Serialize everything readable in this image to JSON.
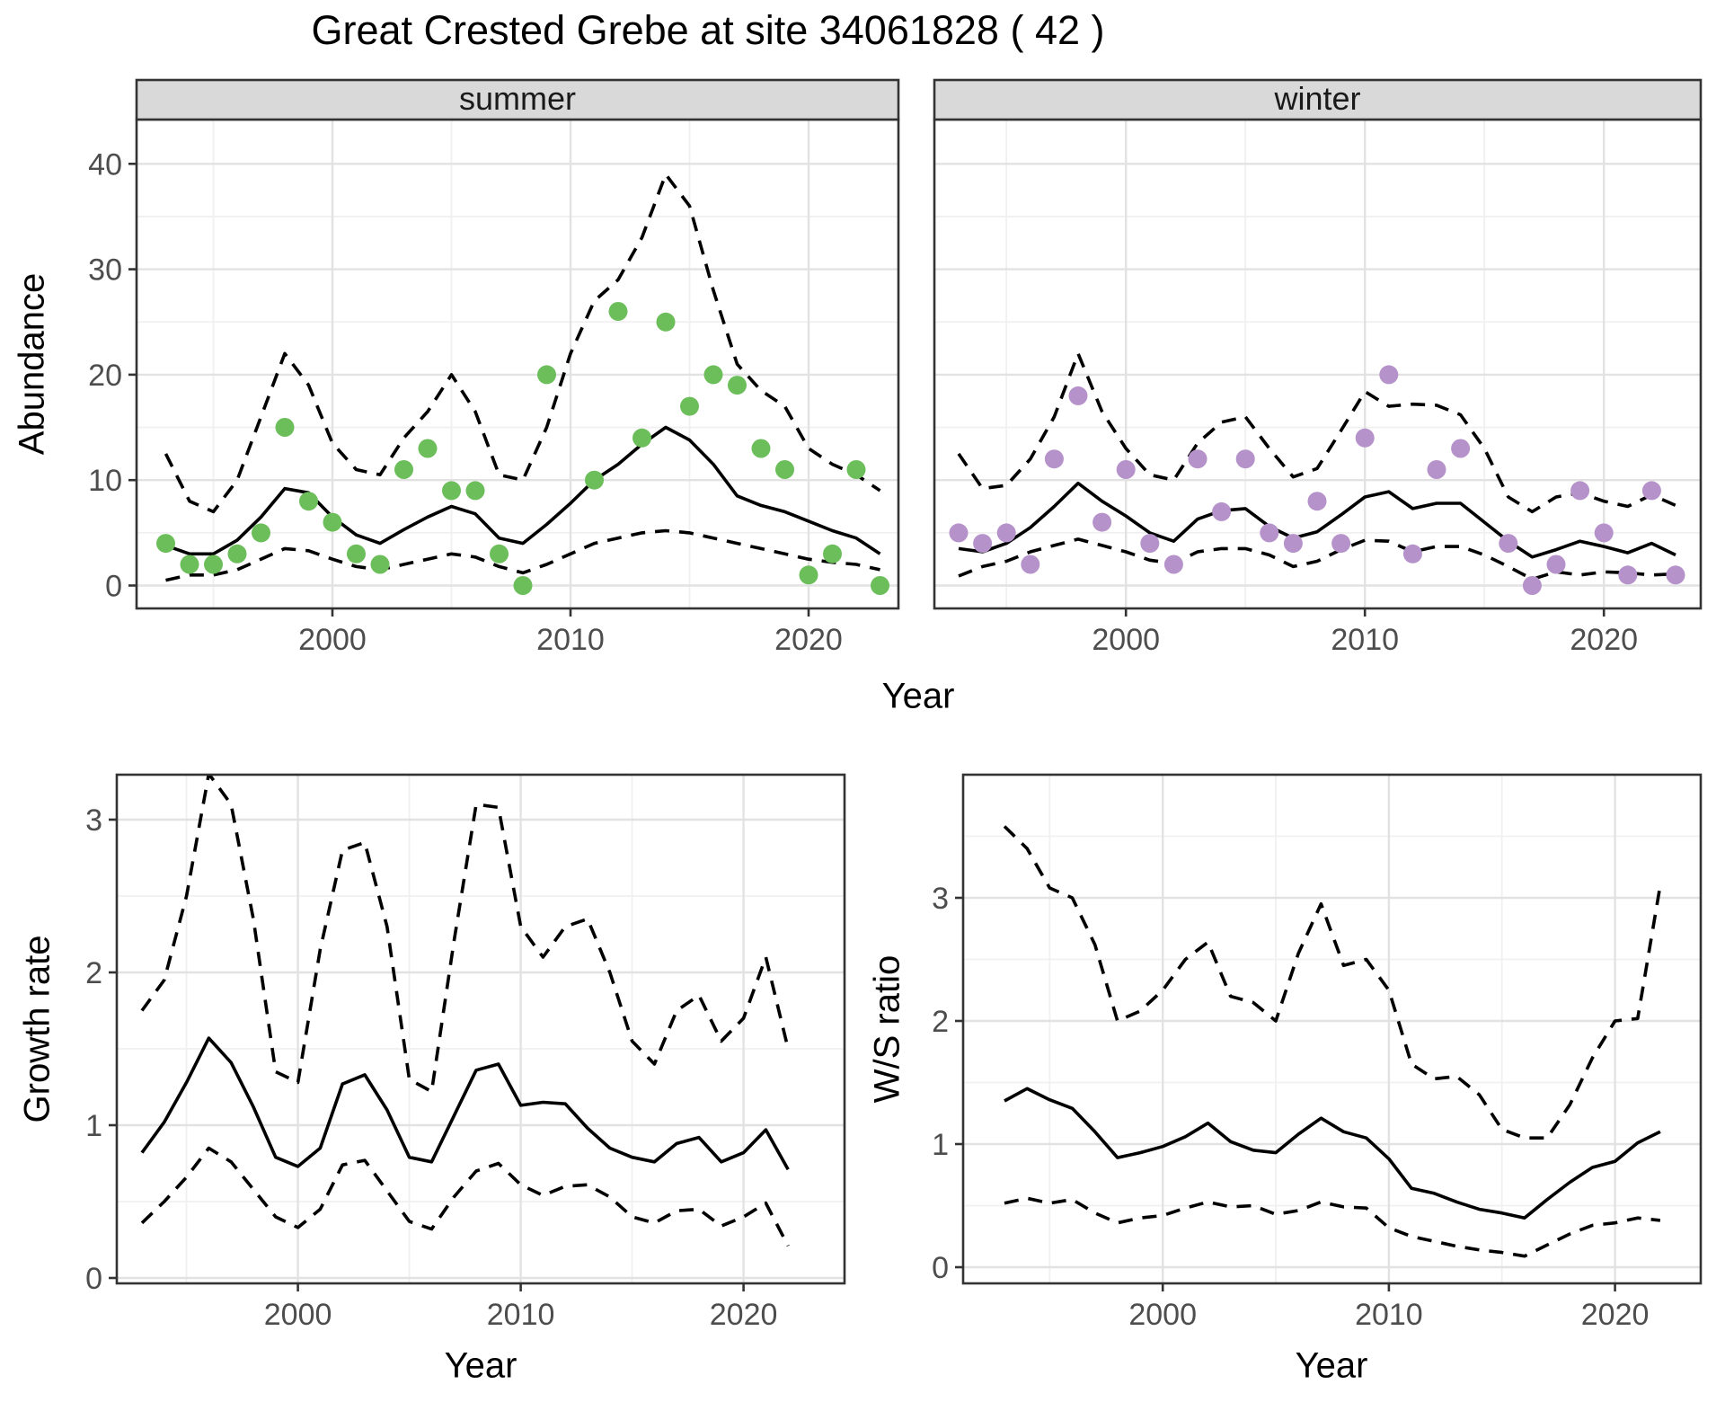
{
  "title": "Great Crested Grebe at site 34061828 ( 42 )",
  "colors": {
    "summer_point": "#6CBE5B",
    "winter_point": "#B592C9",
    "line": "#000000",
    "grid_major": "#E2E2E2",
    "grid_minor": "#F0F0F0",
    "strip_bg": "#D9D9D9",
    "panel_border": "#333333",
    "tick_label": "#4D4D4D",
    "strip_text": "#1A1A1A"
  },
  "axes": {
    "abundance_label": "Abundance",
    "year_label": "Year",
    "growth_label": "Growth rate",
    "ws_label": "W/S ratio"
  },
  "facets": [
    {
      "label": "summer"
    },
    {
      "label": "winter"
    }
  ],
  "chart_data": [
    {
      "id": "summer-abundance",
      "type": "line",
      "facet": "summer",
      "xlabel": "Year",
      "ylabel": "Abundance",
      "xlim": [
        1991.7,
        2023.8
      ],
      "ylim": [
        -2.2,
        44.2
      ],
      "xticks": [
        2000,
        2010,
        2020
      ],
      "xticks_minor": [
        1995,
        2005,
        2015
      ],
      "yticks": [
        0,
        10,
        20,
        30,
        40
      ],
      "yticks_minor": [
        5,
        15,
        25,
        35
      ],
      "x": [
        1993,
        1994,
        1995,
        1996,
        1997,
        1998,
        1999,
        2000,
        2001,
        2002,
        2003,
        2004,
        2005,
        2006,
        2007,
        2008,
        2009,
        2010,
        2011,
        2012,
        2013,
        2014,
        2015,
        2016,
        2017,
        2018,
        2019,
        2020,
        2021,
        2022,
        2023
      ],
      "series": [
        {
          "name": "upper-ci",
          "style": "dashed",
          "values": [
            12.5,
            8.0,
            7.0,
            10.0,
            16.0,
            22.0,
            19.0,
            13.5,
            11.0,
            10.5,
            14.0,
            16.5,
            20.0,
            16.5,
            10.5,
            10.0,
            15.0,
            22.0,
            27.0,
            29.0,
            33.0,
            39.0,
            36.0,
            28.0,
            21.0,
            18.5,
            17.0,
            13.0,
            11.5,
            10.5,
            9.0
          ]
        },
        {
          "name": "lower-ci",
          "style": "dashed",
          "values": [
            0.5,
            1.0,
            1.0,
            1.5,
            2.5,
            3.5,
            3.3,
            2.5,
            1.8,
            1.5,
            2.0,
            2.5,
            3.0,
            2.7,
            1.8,
            1.2,
            2.0,
            3.0,
            4.0,
            4.5,
            5.0,
            5.2,
            5.0,
            4.5,
            4.0,
            3.5,
            3.0,
            2.5,
            2.2,
            2.0,
            1.5
          ]
        },
        {
          "name": "fitted",
          "style": "solid",
          "values": [
            3.8,
            3.0,
            3.0,
            4.3,
            6.5,
            9.2,
            8.8,
            6.5,
            4.8,
            4.0,
            5.3,
            6.5,
            7.5,
            6.8,
            4.5,
            4.0,
            5.8,
            7.8,
            10.0,
            11.5,
            13.4,
            15.0,
            13.8,
            11.5,
            8.5,
            7.6,
            7.0,
            6.1,
            5.2,
            4.5,
            3.0
          ]
        }
      ],
      "points": {
        "name": "observed",
        "color_key": "summer_point",
        "data": [
          [
            1993,
            4
          ],
          [
            1994,
            2
          ],
          [
            1995,
            2
          ],
          [
            1996,
            3
          ],
          [
            1997,
            5
          ],
          [
            1998,
            15
          ],
          [
            1999,
            8
          ],
          [
            2000,
            6
          ],
          [
            2001,
            3
          ],
          [
            2002,
            2
          ],
          [
            2003,
            11
          ],
          [
            2004,
            13
          ],
          [
            2005,
            9
          ],
          [
            2006,
            9
          ],
          [
            2007,
            3
          ],
          [
            2008,
            0
          ],
          [
            2009,
            20
          ],
          [
            2011,
            10
          ],
          [
            2012,
            26
          ],
          [
            2013,
            14
          ],
          [
            2014,
            25
          ],
          [
            2015,
            17
          ],
          [
            2016,
            20
          ],
          [
            2017,
            19
          ],
          [
            2018,
            13
          ],
          [
            2019,
            11
          ],
          [
            2020,
            1
          ],
          [
            2021,
            3
          ],
          [
            2022,
            11
          ],
          [
            2023,
            0
          ]
        ]
      }
    },
    {
      "id": "winter-abundance",
      "type": "line",
      "facet": "winter",
      "xlabel": "Year",
      "ylabel": "Abundance",
      "xlim": [
        1991.7,
        2023.8
      ],
      "ylim": [
        -2.2,
        44.2
      ],
      "xticks": [
        2000,
        2010,
        2020
      ],
      "xticks_minor": [
        1995,
        2005,
        2015
      ],
      "yticks": [
        0,
        10,
        20,
        30,
        40
      ],
      "yticks_minor": [
        5,
        15,
        25,
        35
      ],
      "x": [
        1993,
        1994,
        1995,
        1996,
        1997,
        1998,
        1999,
        2000,
        2001,
        2002,
        2003,
        2004,
        2005,
        2006,
        2007,
        2008,
        2009,
        2010,
        2011,
        2012,
        2013,
        2014,
        2015,
        2016,
        2017,
        2018,
        2019,
        2020,
        2021,
        2022,
        2023
      ],
      "series": [
        {
          "name": "upper-ci",
          "style": "dashed",
          "values": [
            12.5,
            9.2,
            9.5,
            12.0,
            16.0,
            22.0,
            16.5,
            13.0,
            10.5,
            10.0,
            13.5,
            15.5,
            16.0,
            13.0,
            10.3,
            11.1,
            14.7,
            18.4,
            17.0,
            17.2,
            17.1,
            16.2,
            13.0,
            8.4,
            7.0,
            8.4,
            8.8,
            8.0,
            7.5,
            8.6,
            7.6
          ]
        },
        {
          "name": "lower-ci",
          "style": "dashed",
          "values": [
            0.9,
            1.8,
            2.3,
            3.2,
            3.8,
            4.4,
            3.8,
            3.2,
            2.4,
            2.1,
            3.2,
            3.5,
            3.5,
            2.9,
            1.8,
            2.3,
            3.4,
            4.3,
            4.2,
            3.2,
            3.7,
            3.7,
            2.9,
            1.8,
            0.6,
            1.3,
            1.0,
            1.3,
            1.2,
            1.0,
            1.1
          ]
        },
        {
          "name": "fitted",
          "style": "solid",
          "values": [
            3.5,
            3.2,
            4.0,
            5.5,
            7.5,
            9.7,
            8.0,
            6.6,
            5.0,
            4.2,
            6.3,
            7.1,
            7.3,
            5.6,
            4.5,
            5.1,
            6.7,
            8.4,
            8.9,
            7.3,
            7.8,
            7.8,
            6.0,
            4.2,
            2.7,
            3.4,
            4.2,
            3.7,
            3.1,
            4.0,
            2.9
          ]
        }
      ],
      "points": {
        "name": "observed",
        "color_key": "winter_point",
        "data": [
          [
            1993,
            5
          ],
          [
            1994,
            4
          ],
          [
            1995,
            5
          ],
          [
            1996,
            2
          ],
          [
            1997,
            12
          ],
          [
            1998,
            18
          ],
          [
            1999,
            6
          ],
          [
            2000,
            11
          ],
          [
            2001,
            4
          ],
          [
            2002,
            2
          ],
          [
            2003,
            12
          ],
          [
            2004,
            7
          ],
          [
            2005,
            12
          ],
          [
            2006,
            5
          ],
          [
            2007,
            4
          ],
          [
            2008,
            8
          ],
          [
            2009,
            4
          ],
          [
            2010,
            14
          ],
          [
            2011,
            20
          ],
          [
            2012,
            3
          ],
          [
            2013,
            11
          ],
          [
            2014,
            13
          ],
          [
            2016,
            4
          ],
          [
            2017,
            0
          ],
          [
            2018,
            2
          ],
          [
            2019,
            9
          ],
          [
            2020,
            5
          ],
          [
            2021,
            1
          ],
          [
            2022,
            9
          ],
          [
            2023,
            1
          ]
        ]
      }
    },
    {
      "id": "growth-rate",
      "type": "line",
      "facet": null,
      "xlabel": "Year",
      "ylabel": "Growth rate",
      "xlim": [
        1991.9,
        2025.3
      ],
      "ylim": [
        -0.04,
        3.33
      ],
      "xticks": [
        2000,
        2010,
        2020
      ],
      "xticks_minor": [
        1995,
        2005,
        2015
      ],
      "yticks": [
        0,
        1,
        2,
        3
      ],
      "yticks_minor": [
        0.5,
        1.5,
        2.5
      ],
      "x": [
        1993,
        1994,
        1995,
        1996,
        1997,
        1998,
        1999,
        2000,
        2001,
        2002,
        2003,
        2004,
        2005,
        2006,
        2007,
        2008,
        2009,
        2010,
        2011,
        2012,
        2013,
        2014,
        2015,
        2016,
        2017,
        2018,
        2019,
        2020,
        2021,
        2022
      ],
      "series": [
        {
          "name": "upper-ci",
          "style": "dashed",
          "values": [
            1.75,
            1.95,
            2.5,
            3.3,
            3.1,
            2.35,
            1.35,
            1.28,
            2.15,
            2.8,
            2.85,
            2.3,
            1.3,
            1.22,
            2.2,
            3.1,
            3.08,
            2.3,
            2.1,
            2.3,
            2.35,
            2.0,
            1.55,
            1.4,
            1.75,
            1.85,
            1.55,
            1.7,
            2.1,
            1.5
          ]
        },
        {
          "name": "lower-ci",
          "style": "dashed",
          "values": [
            0.36,
            0.5,
            0.66,
            0.85,
            0.76,
            0.58,
            0.4,
            0.33,
            0.45,
            0.74,
            0.77,
            0.57,
            0.37,
            0.32,
            0.53,
            0.7,
            0.75,
            0.61,
            0.54,
            0.6,
            0.61,
            0.53,
            0.4,
            0.36,
            0.44,
            0.45,
            0.34,
            0.4,
            0.49,
            0.21
          ]
        },
        {
          "name": "estimate",
          "style": "solid",
          "values": [
            0.82,
            1.02,
            1.28,
            1.57,
            1.41,
            1.12,
            0.79,
            0.73,
            0.85,
            1.27,
            1.33,
            1.1,
            0.79,
            0.76,
            1.06,
            1.36,
            1.4,
            1.13,
            1.15,
            1.14,
            0.98,
            0.85,
            0.79,
            0.76,
            0.88,
            0.92,
            0.76,
            0.82,
            0.97,
            0.71
          ]
        }
      ],
      "points": null
    },
    {
      "id": "ws-ratio",
      "type": "line",
      "facet": null,
      "xlabel": "Year",
      "ylabel": "W/S ratio",
      "xlim": [
        1991.2,
        2023.9
      ],
      "ylim": [
        -0.13,
        4.0
      ],
      "xticks": [
        2000,
        2010,
        2020
      ],
      "xticks_minor": [
        1995,
        2005,
        2015
      ],
      "yticks": [
        0,
        1,
        2,
        3
      ],
      "yticks_minor": [
        0.5,
        1.5,
        2.5,
        3.5
      ],
      "x": [
        1993,
        1994,
        1995,
        1996,
        1997,
        1998,
        1999,
        2000,
        2001,
        2002,
        2003,
        2004,
        2005,
        2006,
        2007,
        2008,
        2009,
        2010,
        2011,
        2012,
        2013,
        2014,
        2015,
        2016,
        2017,
        2018,
        2019,
        2020,
        2021,
        2022
      ],
      "series": [
        {
          "name": "upper-ci",
          "style": "dashed",
          "values": [
            3.58,
            3.4,
            3.08,
            3.0,
            2.62,
            2.0,
            2.08,
            2.25,
            2.5,
            2.64,
            2.2,
            2.15,
            2.0,
            2.55,
            2.95,
            2.45,
            2.5,
            2.25,
            1.65,
            1.53,
            1.55,
            1.4,
            1.12,
            1.05,
            1.05,
            1.32,
            1.7,
            2.0,
            2.02,
            3.1
          ]
        },
        {
          "name": "lower-ci",
          "style": "dashed",
          "values": [
            0.52,
            0.56,
            0.52,
            0.55,
            0.44,
            0.36,
            0.4,
            0.42,
            0.48,
            0.53,
            0.49,
            0.5,
            0.43,
            0.46,
            0.53,
            0.49,
            0.48,
            0.32,
            0.25,
            0.21,
            0.17,
            0.14,
            0.12,
            0.09,
            0.18,
            0.27,
            0.34,
            0.36,
            0.4,
            0.38
          ]
        },
        {
          "name": "estimate",
          "style": "solid",
          "values": [
            1.35,
            1.45,
            1.36,
            1.29,
            1.1,
            0.89,
            0.93,
            0.98,
            1.06,
            1.17,
            1.02,
            0.95,
            0.93,
            1.08,
            1.21,
            1.1,
            1.05,
            0.88,
            0.64,
            0.6,
            0.53,
            0.47,
            0.44,
            0.4,
            0.55,
            0.69,
            0.81,
            0.86,
            1.01,
            1.1
          ]
        }
      ],
      "points": null
    }
  ]
}
